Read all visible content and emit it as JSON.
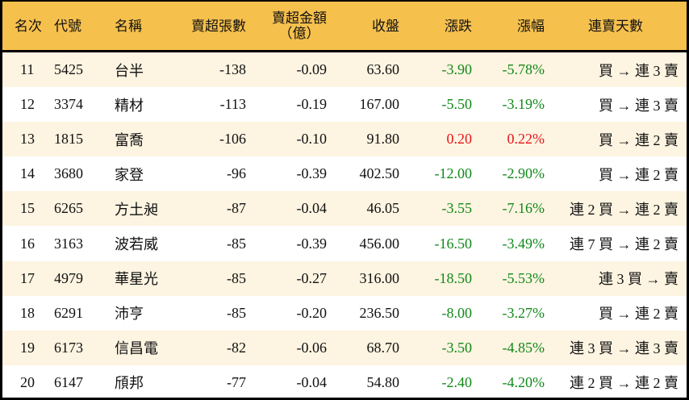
{
  "headers": {
    "rank": "名次",
    "code": "代號",
    "name": "名稱",
    "sell_lots": "賣超張數",
    "sell_amount": "賣超金額",
    "sell_amount_unit": "（億）",
    "close": "收盤",
    "change": "漲跌",
    "change_pct": "漲幅",
    "streak": "連賣天數"
  },
  "colors": {
    "header_bg": "#F6C04D",
    "alt_row_bg": "#FDF4E1",
    "down": "#11891A",
    "up": "#E8141B"
  },
  "rows": [
    {
      "rank": "11",
      "code": "5425",
      "name": "台半",
      "sell_lots": "-138",
      "sell_amount": "-0.09",
      "close": "63.60",
      "change": "-3.90",
      "change_pct": "-5.78%",
      "dir": "down",
      "streak": "買 → 連 3 賣"
    },
    {
      "rank": "12",
      "code": "3374",
      "name": "精材",
      "sell_lots": "-113",
      "sell_amount": "-0.19",
      "close": "167.00",
      "change": "-5.50",
      "change_pct": "-3.19%",
      "dir": "down",
      "streak": "買 → 連 3 賣"
    },
    {
      "rank": "13",
      "code": "1815",
      "name": "富喬",
      "sell_lots": "-106",
      "sell_amount": "-0.10",
      "close": "91.80",
      "change": "0.20",
      "change_pct": "0.22%",
      "dir": "up",
      "streak": "買 → 連 2 賣"
    },
    {
      "rank": "14",
      "code": "3680",
      "name": "家登",
      "sell_lots": "-96",
      "sell_amount": "-0.39",
      "close": "402.50",
      "change": "-12.00",
      "change_pct": "-2.90%",
      "dir": "down",
      "streak": "買 → 連 2 賣"
    },
    {
      "rank": "15",
      "code": "6265",
      "name": "方土昶",
      "sell_lots": "-87",
      "sell_amount": "-0.04",
      "close": "46.05",
      "change": "-3.55",
      "change_pct": "-7.16%",
      "dir": "down",
      "streak": "連 2 買 → 連 2 賣"
    },
    {
      "rank": "16",
      "code": "3163",
      "name": "波若威",
      "sell_lots": "-85",
      "sell_amount": "-0.39",
      "close": "456.00",
      "change": "-16.50",
      "change_pct": "-3.49%",
      "dir": "down",
      "streak": "連 7 買 → 連 2 賣"
    },
    {
      "rank": "17",
      "code": "4979",
      "name": "華星光",
      "sell_lots": "-85",
      "sell_amount": "-0.27",
      "close": "316.00",
      "change": "-18.50",
      "change_pct": "-5.53%",
      "dir": "down",
      "streak": "連 3 買 → 賣"
    },
    {
      "rank": "18",
      "code": "6291",
      "name": "沛亨",
      "sell_lots": "-85",
      "sell_amount": "-0.20",
      "close": "236.50",
      "change": "-8.00",
      "change_pct": "-3.27%",
      "dir": "down",
      "streak": "買 → 連 2 賣"
    },
    {
      "rank": "19",
      "code": "6173",
      "name": "信昌電",
      "sell_lots": "-82",
      "sell_amount": "-0.06",
      "close": "68.70",
      "change": "-3.50",
      "change_pct": "-4.85%",
      "dir": "down",
      "streak": "連 3 買 → 連 3 賣"
    },
    {
      "rank": "20",
      "code": "6147",
      "name": "頎邦",
      "sell_lots": "-77",
      "sell_amount": "-0.04",
      "close": "54.80",
      "change": "-2.40",
      "change_pct": "-4.20%",
      "dir": "down",
      "streak": "連 2 買 → 連 2 賣"
    }
  ]
}
